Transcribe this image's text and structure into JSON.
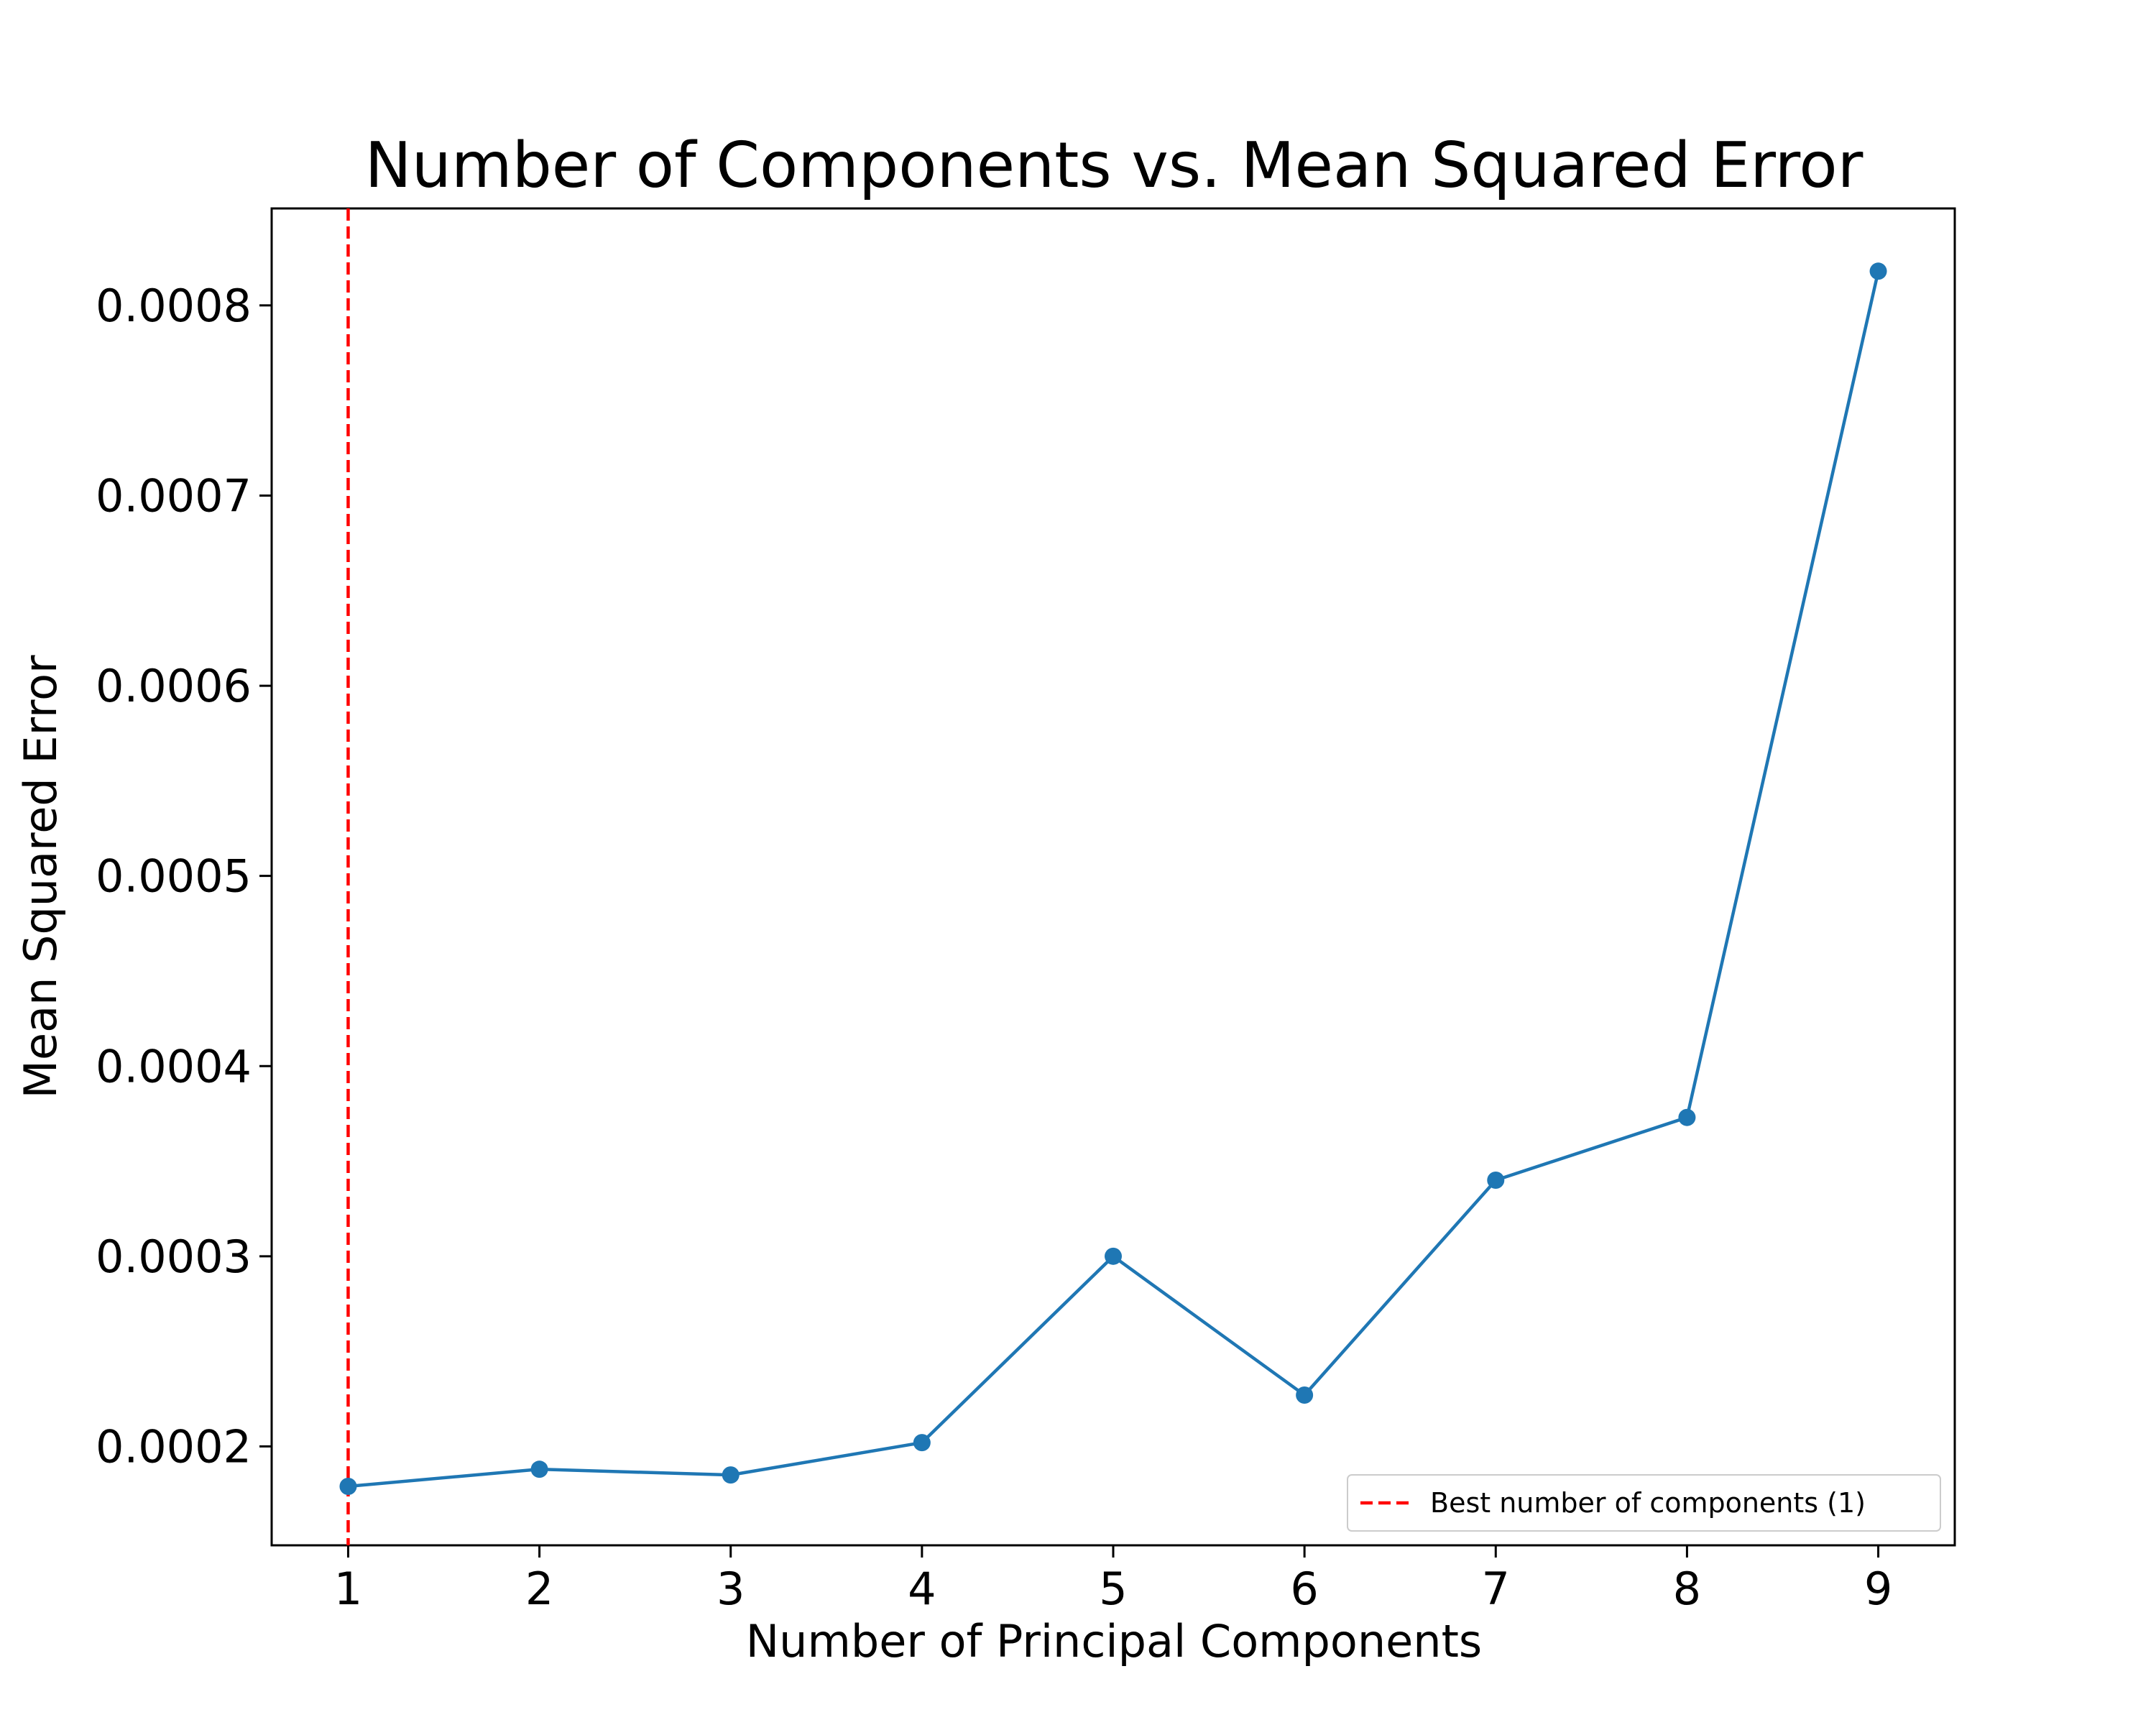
{
  "chart_data": {
    "type": "line",
    "title": "Number of Components vs. Mean Squared Error",
    "xlabel": "Number of Principal Components",
    "ylabel": "Mean Squared Error",
    "x": [
      1,
      2,
      3,
      4,
      5,
      6,
      7,
      8,
      9
    ],
    "series": [
      {
        "values": [
          0.000179,
          0.000188,
          0.000185,
          0.000202,
          0.0003,
          0.000227,
          0.00034,
          0.000373,
          0.000818
        ],
        "color": "#1f77b4",
        "marker": "circle"
      }
    ],
    "reference_line": {
      "orientation": "vertical",
      "x": 1,
      "style": "dashed",
      "color": "#ff0000",
      "legend_label": "Best number of components (1)"
    },
    "xlim": [
      0.6,
      9.4
    ],
    "ylim": [
      0.000148,
      0.000851
    ],
    "x_ticks": [
      {
        "value": 1,
        "label": "1"
      },
      {
        "value": 2,
        "label": "2"
      },
      {
        "value": 3,
        "label": "3"
      },
      {
        "value": 4,
        "label": "4"
      },
      {
        "value": 5,
        "label": "5"
      },
      {
        "value": 6,
        "label": "6"
      },
      {
        "value": 7,
        "label": "7"
      },
      {
        "value": 8,
        "label": "8"
      },
      {
        "value": 9,
        "label": "9"
      }
    ],
    "y_ticks": [
      {
        "value": 0.0002,
        "label": "0.0002"
      },
      {
        "value": 0.0003,
        "label": "0.0003"
      },
      {
        "value": 0.0004,
        "label": "0.0004"
      },
      {
        "value": 0.0005,
        "label": "0.0005"
      },
      {
        "value": 0.0006,
        "label": "0.0006"
      },
      {
        "value": 0.0007,
        "label": "0.0007"
      },
      {
        "value": 0.0008,
        "label": "0.0008"
      }
    ],
    "grid": false,
    "legend_position": "lower-right"
  }
}
